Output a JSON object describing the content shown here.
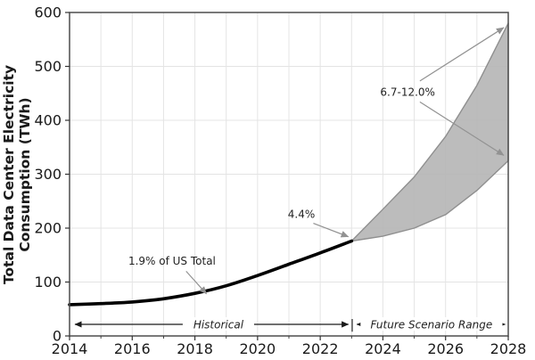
{
  "figure": {
    "ylabel_line1": "Total Data Center Electricity",
    "ylabel_line2": "Consumption (TWh)"
  },
  "chart_data": {
    "type": "line",
    "title": "",
    "xlabel": "",
    "ylabel": "Total Data Center Electricity Consumption (TWh)",
    "xlim": [
      2014,
      2028
    ],
    "ylim": [
      0,
      600
    ],
    "grid": true,
    "legend_position": "none",
    "x_major_ticks": [
      2014,
      2016,
      2018,
      2020,
      2022,
      2024,
      2026,
      2028
    ],
    "x_minor_ticks": [
      2015,
      2017,
      2019,
      2021,
      2023,
      2025,
      2027
    ],
    "x_grid_years": [
      2015,
      2016,
      2017,
      2018,
      2019,
      2020,
      2021,
      2022,
      2023,
      2024,
      2025,
      2026,
      2027
    ],
    "y_ticks": [
      0,
      100,
      200,
      300,
      400,
      500,
      600
    ],
    "y_grid_values": [
      100,
      200,
      300,
      400,
      500
    ],
    "series": [
      {
        "name": "Historical consumption",
        "kind": "line",
        "x": [
          2014,
          2015,
          2016,
          2017,
          2018,
          2019,
          2020,
          2021,
          2022,
          2023
        ],
        "values": [
          58,
          60,
          63,
          69,
          79,
          93,
          112,
          133,
          154,
          176
        ]
      },
      {
        "name": "Future scenario range",
        "kind": "band",
        "x": [
          2023,
          2024,
          2025,
          2026,
          2027,
          2028
        ],
        "lower": [
          176,
          185,
          200,
          225,
          270,
          325
        ],
        "upper": [
          176,
          235,
          295,
          370,
          465,
          580
        ]
      }
    ],
    "annotations": [
      {
        "id": "us-share-2018",
        "text": "1.9% of US Total",
        "x": 2017.27,
        "y": 139,
        "arrows": [
          {
            "x1": 2017.72,
            "y1": 120,
            "x2": 2018.37,
            "y2": 78
          }
        ]
      },
      {
        "id": "growth-2023",
        "text": "4.4%",
        "x": 2021.4,
        "y": 226,
        "arrows": [
          {
            "x1": 2021.78,
            "y1": 209,
            "x2": 2022.9,
            "y2": 184
          }
        ]
      },
      {
        "id": "range-2028",
        "text": "6.7-12.0%",
        "x": 2024.79,
        "y": 452,
        "arrows": [
          {
            "x1": 2025.18,
            "y1": 473,
            "x2": 2027.86,
            "y2": 572
          },
          {
            "x1": 2025.18,
            "y1": 434,
            "x2": 2027.86,
            "y2": 335
          }
        ]
      }
    ],
    "span_labels": [
      {
        "id": "historical-span",
        "text": "Historical",
        "x": 2018.75,
        "x1": 2014.17,
        "x2": 2022.9,
        "y": 21.5
      },
      {
        "id": "future-span",
        "text": "Future Scenario Range",
        "x": 2025.55,
        "x1": 2023.17,
        "x2": 2027.9,
        "y": 21.5
      }
    ],
    "span_divider": {
      "text": "|",
      "x": 2023.02,
      "y": 21.5
    }
  },
  "colors": {
    "historical_line": "#000000",
    "band_fill": "#b5b5b5",
    "band_edge": "#8f8f8f",
    "grid": "#e4e4e4",
    "spine": "#4d4d4d",
    "tick": "#333333",
    "tick_label": "#1a1a1a",
    "annotation_text": "#1f1f1f",
    "annotation_arrow": "#929292",
    "span_arrow": "#1a1a1a"
  }
}
